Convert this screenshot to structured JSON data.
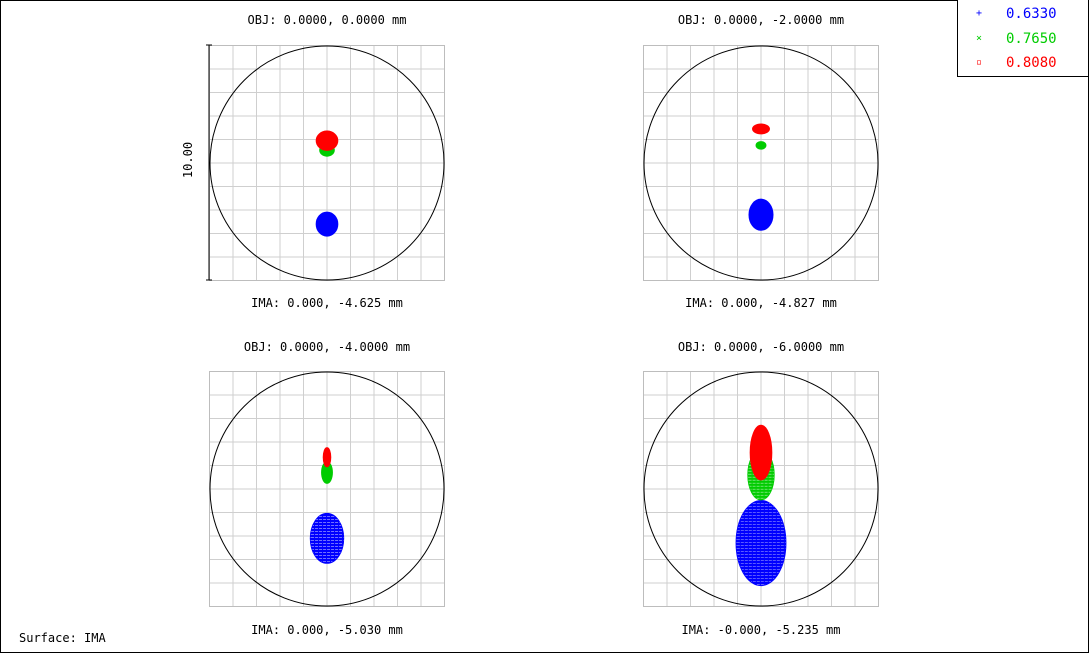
{
  "chart_data": {
    "type": "scatter",
    "title": "",
    "scale_label": "10.00",
    "surface": "Surface: IMA",
    "legend": [
      {
        "name": "0.6330",
        "color": "#0000ff",
        "symbol": "+"
      },
      {
        "name": "0.7650",
        "color": "#00cc00",
        "symbol": "×"
      },
      {
        "name": "0.8080",
        "color": "#ff0000",
        "symbol": "▫"
      }
    ],
    "grid": true,
    "plots": [
      {
        "obj": "OBJ: 0.0000, 0.0000 mm",
        "ima": "IMA: 0.000, -4.625 mm",
        "spots": [
          {
            "series": "0.6330",
            "cx": 0.0,
            "cy": -2.6,
            "rx": 0.45,
            "ry": 0.5
          },
          {
            "series": "0.7650",
            "cx": 0.0,
            "cy": 0.55,
            "rx": 0.3,
            "ry": 0.25
          },
          {
            "series": "0.8080",
            "cx": 0.0,
            "cy": 0.95,
            "rx": 0.45,
            "ry": 0.4
          }
        ]
      },
      {
        "obj": "OBJ: 0.0000, -2.0000 mm",
        "ima": "IMA: 0.000, -4.827 mm",
        "spots": [
          {
            "series": "0.6330",
            "cx": 0.0,
            "cy": -2.2,
            "rx": 0.5,
            "ry": 0.65
          },
          {
            "series": "0.7650",
            "cx": 0.0,
            "cy": 0.75,
            "rx": 0.2,
            "ry": 0.15
          },
          {
            "series": "0.8080",
            "cx": 0.0,
            "cy": 1.45,
            "rx": 0.35,
            "ry": 0.2
          }
        ]
      },
      {
        "obj": "OBJ: 0.0000, -4.0000 mm",
        "ima": "IMA: 0.000, -5.030 mm",
        "spots": [
          {
            "series": "0.6330",
            "cx": 0.0,
            "cy": -2.1,
            "rx": 0.7,
            "ry": 1.05
          },
          {
            "series": "0.7650",
            "cx": 0.0,
            "cy": 0.7,
            "rx": 0.22,
            "ry": 0.45
          },
          {
            "series": "0.8080",
            "cx": 0.0,
            "cy": 1.35,
            "rx": 0.15,
            "ry": 0.4
          }
        ]
      },
      {
        "obj": "OBJ: 0.0000, -6.0000 mm",
        "ima": "IMA: -0.000, -5.235 mm",
        "spots": [
          {
            "series": "0.6330",
            "cx": 0.0,
            "cy": -2.3,
            "rx": 1.05,
            "ry": 1.8
          },
          {
            "series": "0.7650",
            "cx": 0.0,
            "cy": 0.6,
            "rx": 0.55,
            "ry": 1.05
          },
          {
            "series": "0.8080",
            "cx": 0.0,
            "cy": 1.55,
            "rx": 0.45,
            "ry": 1.15
          }
        ]
      }
    ]
  }
}
